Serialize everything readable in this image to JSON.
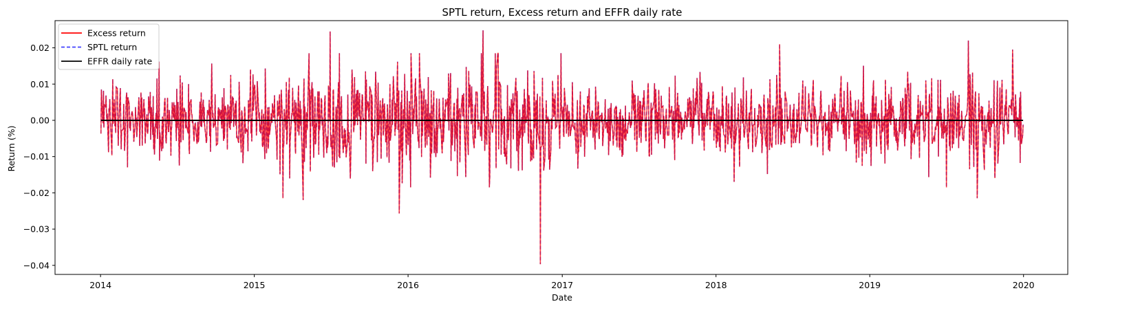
{
  "chart_data": {
    "type": "line",
    "title": "SPTL return, Excess return and EFFR daily rate",
    "xlabel": "Date",
    "ylabel": "Return (%)",
    "xlim": [
      "2013-09-15",
      "2020-04-15"
    ],
    "ylim": [
      -0.0425,
      0.0275
    ],
    "x_ticks": [
      "2014",
      "2015",
      "2016",
      "2017",
      "2018",
      "2019",
      "2020"
    ],
    "y_ticks": [
      "0.02",
      "0.01",
      "0.00",
      "−0.01",
      "−0.02",
      "−0.03",
      "−0.04"
    ],
    "y_tick_values": [
      0.02,
      0.01,
      0.0,
      -0.01,
      -0.02,
      -0.03,
      -0.04
    ],
    "x_range": [
      "2014-01-02",
      "2019-12-31"
    ],
    "grid": false,
    "legend_position": "upper-left",
    "legend": [
      "Excess return",
      "SPTL return",
      "EFFR daily rate"
    ],
    "series": [
      {
        "name": "Excess return",
        "color": "#ff0000",
        "style": "solid",
        "x": [
          "2014-03-06",
          "2015-03-10",
          "2015-04-27",
          "2015-06-30",
          "2015-12-11",
          "2016-06-27",
          "2016-11-10",
          "2018-06-01",
          "2019-08-23",
          "2019-09-13",
          "2019-12-06"
        ],
        "values": [
          -0.013,
          -0.0215,
          -0.022,
          0.0245,
          -0.0257,
          0.0248,
          -0.0397,
          0.021,
          0.022,
          -0.0215,
          0.0195
        ]
      },
      {
        "name": "SPTL return",
        "color": "#4040ff",
        "style": "dashed",
        "x": [
          "2014-03-06",
          "2015-03-10",
          "2015-04-27",
          "2015-06-30",
          "2015-12-11",
          "2016-06-27",
          "2016-11-10",
          "2018-06-01",
          "2019-08-23",
          "2019-09-13",
          "2019-12-06"
        ],
        "values": [
          -0.013,
          -0.0215,
          -0.022,
          0.0245,
          -0.0257,
          0.0248,
          -0.0397,
          0.021,
          0.022,
          -0.0215,
          0.0195
        ]
      },
      {
        "name": "EFFR daily rate",
        "color": "#000000",
        "style": "solid",
        "x": [
          "2014-01-02",
          "2019-12-31"
        ],
        "values": [
          0.0,
          0.0
        ]
      }
    ]
  }
}
